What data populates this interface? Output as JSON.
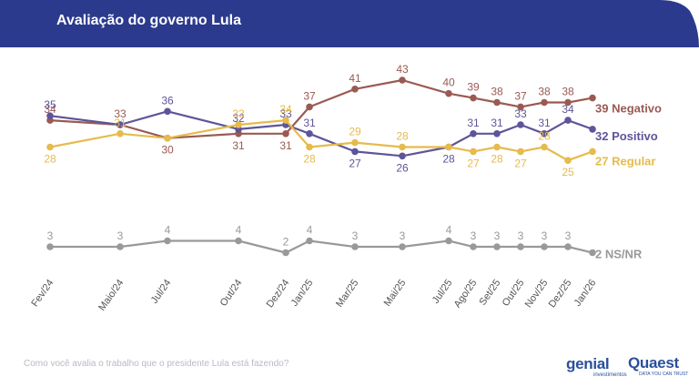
{
  "header": {
    "title": "Avaliação do governo Lula",
    "bg_color": "#2b3a8c"
  },
  "footer": {
    "question": "Como você avalia o trabalho que o presidente Lula está fazendo?",
    "logo_genial": "genial",
    "logo_genial_sub": "investimentos",
    "logo_quaest": "Quaest",
    "logo_quaest_sub": "DATA YOU CAN TRUST"
  },
  "chart_data": {
    "type": "line",
    "categories": [
      "Fev/24",
      "Maio/24",
      "Jul/24",
      "Out/24",
      "Dez/24",
      "Jan/25",
      "Mar/25",
      "Mai/25",
      "Jul/25",
      "Ago/25",
      "Set/25",
      "Out/25",
      "Nov/25",
      "Dez/25",
      "Jan/26"
    ],
    "grid": false,
    "legend": "end-of-line labels",
    "series": [
      {
        "name": "Negativo",
        "end_label": "39 Negativo",
        "color": "#9a5a52",
        "values": [
          34,
          33,
          30,
          31,
          31,
          37,
          41,
          43,
          40,
          39,
          38,
          37,
          38,
          38,
          39
        ],
        "labels": [
          "34",
          "33",
          "30",
          "31",
          "31",
          "37",
          "41",
          "43",
          "40",
          "39",
          "38",
          "37",
          "38",
          "38",
          ""
        ]
      },
      {
        "name": "Positivo",
        "end_label": "32 Positivo",
        "color": "#5e5599",
        "values": [
          35,
          33,
          36,
          32,
          33,
          31,
          27,
          26,
          28,
          31,
          31,
          33,
          31,
          34,
          32
        ],
        "labels": [
          "35",
          "",
          "36",
          "32",
          "33",
          "31",
          "27",
          "26",
          "28",
          "31",
          "31",
          "33",
          "31",
          "34",
          ""
        ]
      },
      {
        "name": "Regular",
        "end_label": "27 Regular",
        "color": "#e6bb4c",
        "values": [
          28,
          31,
          30,
          33,
          34,
          28,
          29,
          28,
          28,
          27,
          28,
          27,
          28,
          25,
          27
        ],
        "labels": [
          "28",
          "31",
          "",
          "33",
          "34",
          "28",
          "29",
          "28",
          "",
          "27",
          "28",
          "27",
          "28",
          "25",
          ""
        ]
      },
      {
        "name": "NS/NR",
        "end_label": "2 NS/NR",
        "color": "#999999",
        "values": [
          3,
          3,
          4,
          4,
          2,
          4,
          3,
          3,
          4,
          3,
          3,
          3,
          3,
          3,
          2
        ],
        "labels": [
          "3",
          "3",
          "4",
          "4",
          "2",
          "4",
          "3",
          "3",
          "4",
          "3",
          "3",
          "3",
          "3",
          "3",
          ""
        ]
      }
    ]
  }
}
